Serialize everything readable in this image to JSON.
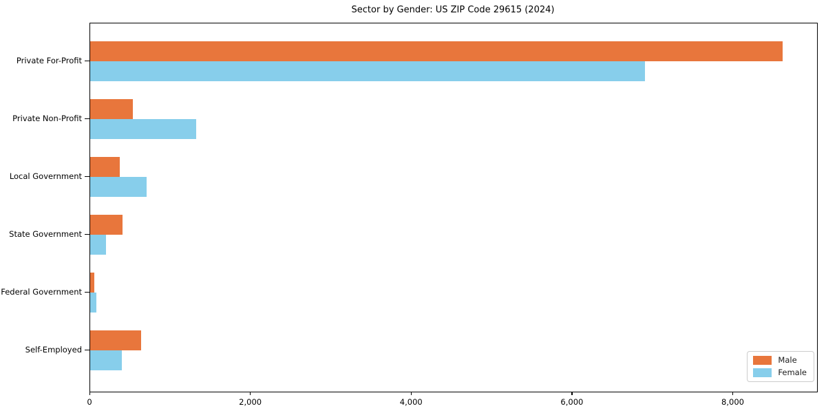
{
  "chart_data": {
    "type": "bar",
    "orientation": "horizontal",
    "title": "Sector by Gender: US ZIP Code 29615 (2024)",
    "categories": [
      "Private For-Profit",
      "Private Non-Profit",
      "Local Government",
      "State Government",
      "Federal Government",
      "Self-Employed"
    ],
    "series": [
      {
        "name": "Male",
        "color": "#e8763c",
        "values": [
          8610,
          530,
          370,
          400,
          50,
          630
        ]
      },
      {
        "name": "Female",
        "color": "#87ceeb",
        "values": [
          6900,
          1320,
          700,
          200,
          75,
          390
        ]
      }
    ],
    "xlabel": "",
    "ylabel": "",
    "xlim": [
      0,
      9040
    ],
    "xticks": {
      "values": [
        0,
        2000,
        4000,
        6000,
        8000
      ],
      "labels": [
        "0",
        "2,000",
        "4,000",
        "6,000",
        "8,000"
      ]
    },
    "grid": false,
    "legend": {
      "position": "lower right"
    }
  },
  "colors": {
    "axis": "#000000",
    "background": "#ffffff",
    "legend_border": "#cccccc",
    "male": "#e8763c",
    "female": "#87ceeb"
  }
}
